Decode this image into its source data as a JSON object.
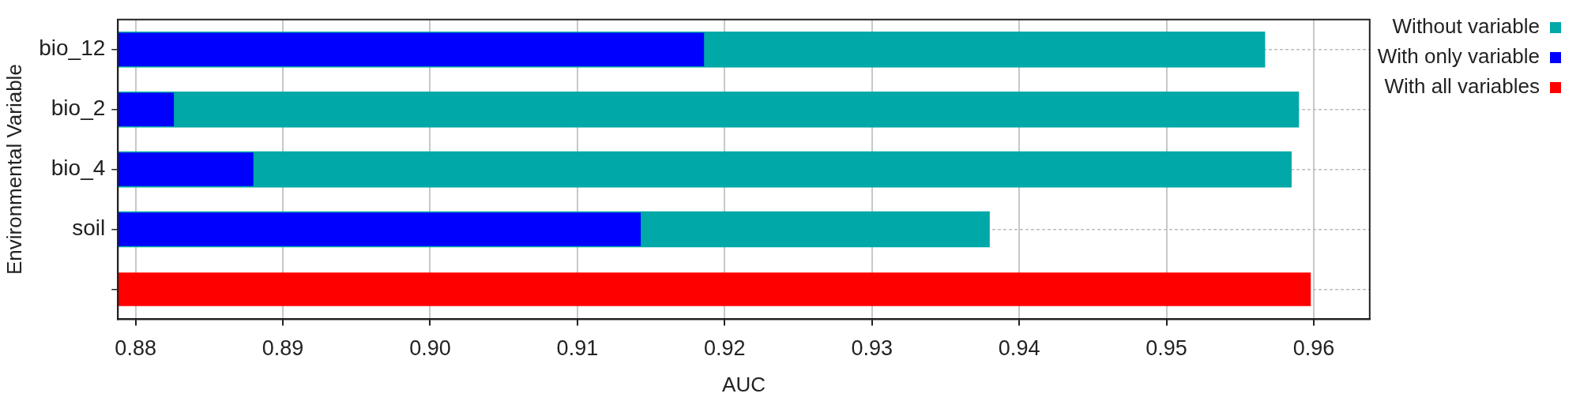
{
  "chart_data": {
    "type": "bar",
    "orientation": "horizontal",
    "xlabel": "AUC",
    "ylabel": "Environmental Variable",
    "categories": [
      "bio_12",
      "bio_2",
      "bio_4",
      "soil",
      null
    ],
    "series": [
      {
        "name": "Without variable",
        "color": "#00a8a8",
        "values": [
          0.9567,
          0.959,
          0.9585,
          0.938,
          null
        ]
      },
      {
        "name": "With only variable",
        "color": "#0000ff",
        "values": [
          0.9186,
          0.8826,
          0.888,
          0.9143,
          null
        ]
      },
      {
        "name": "With all variables",
        "color": "#ff0000",
        "values": [
          null,
          null,
          null,
          null,
          0.9598
        ]
      }
    ],
    "xlim": [
      0.8788,
      0.9638
    ],
    "xticks": [
      0.88,
      0.89,
      {
        "value": 0.9,
        "label": "0.90"
      },
      0.91,
      0.92,
      0.93,
      0.94,
      0.95,
      0.96
    ],
    "grid": true,
    "legend": "top right"
  }
}
